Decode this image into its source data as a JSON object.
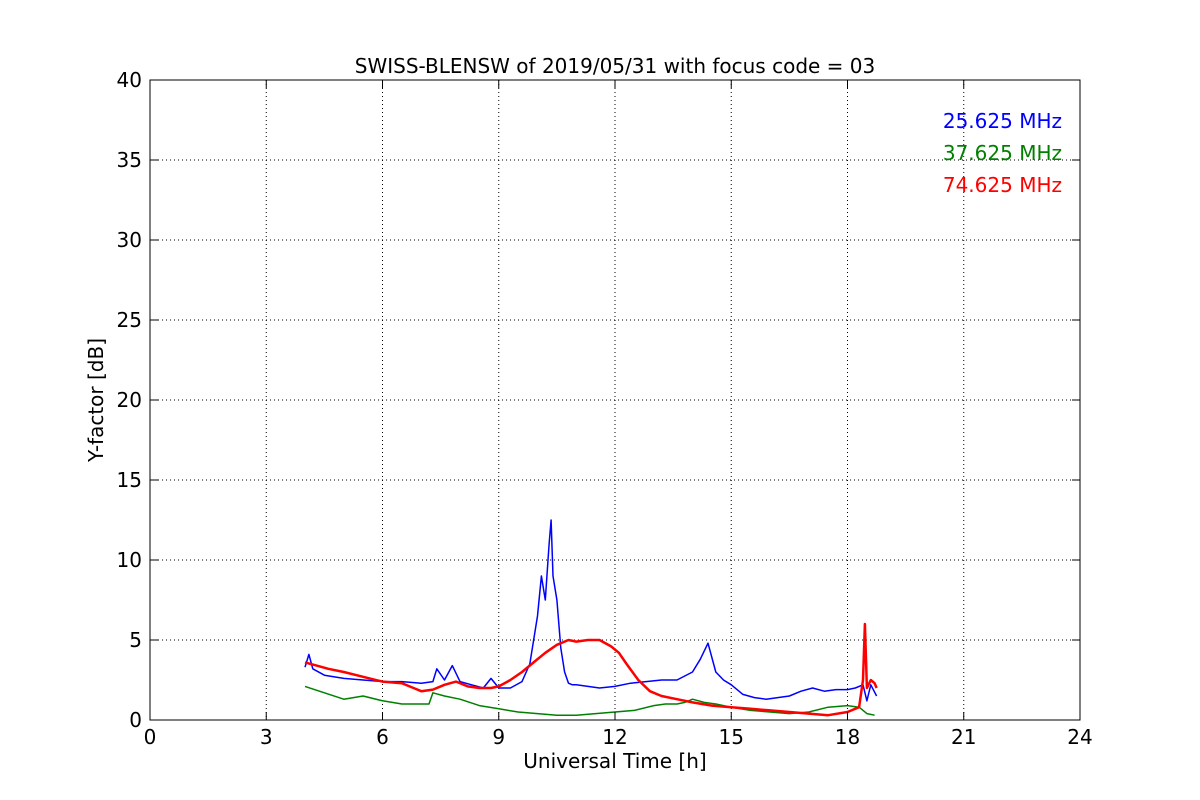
{
  "chart_data": {
    "type": "line",
    "title": "SWISS-BLENSW of 2019/05/31 with focus code = 03",
    "xlabel": "Universal Time [h]",
    "ylabel": "Y-factor [dB]",
    "xlim": [
      0,
      24
    ],
    "ylim": [
      0,
      40
    ],
    "xticks": [
      0,
      3,
      6,
      9,
      12,
      15,
      18,
      21,
      24
    ],
    "yticks": [
      0,
      5,
      10,
      15,
      20,
      25,
      30,
      35,
      40
    ],
    "grid": true,
    "legend_position": "top-right",
    "series": [
      {
        "name": "25.625 MHz",
        "color": "#0000ff",
        "x": [
          4.0,
          4.1,
          4.2,
          4.5,
          5.0,
          5.5,
          6.0,
          6.5,
          7.0,
          7.3,
          7.4,
          7.6,
          7.8,
          8.0,
          8.3,
          8.6,
          8.8,
          9.0,
          9.3,
          9.6,
          9.8,
          10.0,
          10.1,
          10.2,
          10.3,
          10.35,
          10.4,
          10.5,
          10.6,
          10.7,
          10.8,
          10.9,
          11.0,
          11.3,
          11.6,
          12.0,
          12.4,
          12.8,
          13.2,
          13.6,
          14.0,
          14.2,
          14.4,
          14.6,
          14.8,
          15.0,
          15.3,
          15.6,
          15.9,
          16.2,
          16.5,
          16.8,
          17.1,
          17.4,
          17.7,
          18.0,
          18.2,
          18.4,
          18.5,
          18.6,
          18.75
        ],
        "y": [
          3.3,
          4.1,
          3.2,
          2.8,
          2.6,
          2.5,
          2.4,
          2.4,
          2.3,
          2.4,
          3.2,
          2.5,
          3.4,
          2.4,
          2.2,
          2.0,
          2.6,
          2.0,
          2.0,
          2.4,
          3.5,
          6.5,
          9.0,
          7.5,
          11.0,
          12.5,
          9.0,
          7.5,
          4.5,
          3.0,
          2.3,
          2.2,
          2.2,
          2.1,
          2.0,
          2.1,
          2.3,
          2.4,
          2.5,
          2.5,
          3.0,
          3.8,
          4.8,
          3.0,
          2.5,
          2.2,
          1.6,
          1.4,
          1.3,
          1.4,
          1.5,
          1.8,
          2.0,
          1.8,
          1.9,
          1.9,
          2.0,
          2.2,
          1.2,
          2.2,
          1.5
        ]
      },
      {
        "name": "37.625 MHz",
        "color": "#008000",
        "x": [
          4.0,
          4.5,
          5.0,
          5.5,
          6.0,
          6.5,
          7.0,
          7.2,
          7.3,
          7.6,
          8.0,
          8.5,
          9.0,
          9.5,
          10.0,
          10.5,
          11.0,
          11.5,
          12.0,
          12.5,
          13.0,
          13.3,
          13.6,
          13.8,
          14.0,
          14.3,
          14.6,
          15.0,
          15.5,
          16.0,
          16.5,
          17.0,
          17.5,
          18.0,
          18.3,
          18.5,
          18.7
        ],
        "y": [
          2.1,
          1.7,
          1.3,
          1.5,
          1.2,
          1.0,
          1.0,
          1.0,
          1.7,
          1.5,
          1.3,
          0.9,
          0.7,
          0.5,
          0.4,
          0.3,
          0.3,
          0.4,
          0.5,
          0.6,
          0.9,
          1.0,
          1.0,
          1.1,
          1.3,
          1.1,
          1.0,
          0.8,
          0.6,
          0.5,
          0.4,
          0.5,
          0.8,
          0.9,
          0.8,
          0.4,
          0.3
        ]
      },
      {
        "name": "74.625 MHz",
        "color": "#ff0000",
        "x": [
          4.0,
          4.3,
          4.6,
          5.0,
          5.5,
          6.0,
          6.5,
          6.8,
          7.0,
          7.3,
          7.6,
          7.9,
          8.2,
          8.5,
          8.8,
          9.0,
          9.3,
          9.6,
          9.9,
          10.2,
          10.5,
          10.8,
          11.0,
          11.3,
          11.6,
          11.9,
          12.1,
          12.3,
          12.6,
          12.9,
          13.2,
          13.6,
          14.0,
          14.5,
          15.0,
          15.5,
          16.0,
          16.5,
          17.0,
          17.5,
          18.0,
          18.3,
          18.4,
          18.45,
          18.5,
          18.6,
          18.7,
          18.75
        ],
        "y": [
          3.6,
          3.4,
          3.2,
          3.0,
          2.7,
          2.4,
          2.3,
          2.0,
          1.8,
          1.9,
          2.2,
          2.4,
          2.1,
          2.0,
          2.0,
          2.1,
          2.5,
          3.0,
          3.6,
          4.2,
          4.7,
          5.0,
          4.9,
          5.0,
          5.0,
          4.6,
          4.2,
          3.5,
          2.5,
          1.8,
          1.5,
          1.3,
          1.1,
          0.9,
          0.8,
          0.7,
          0.6,
          0.5,
          0.4,
          0.3,
          0.5,
          0.8,
          2.5,
          6.0,
          2.0,
          2.5,
          2.3,
          2.0
        ]
      }
    ]
  }
}
